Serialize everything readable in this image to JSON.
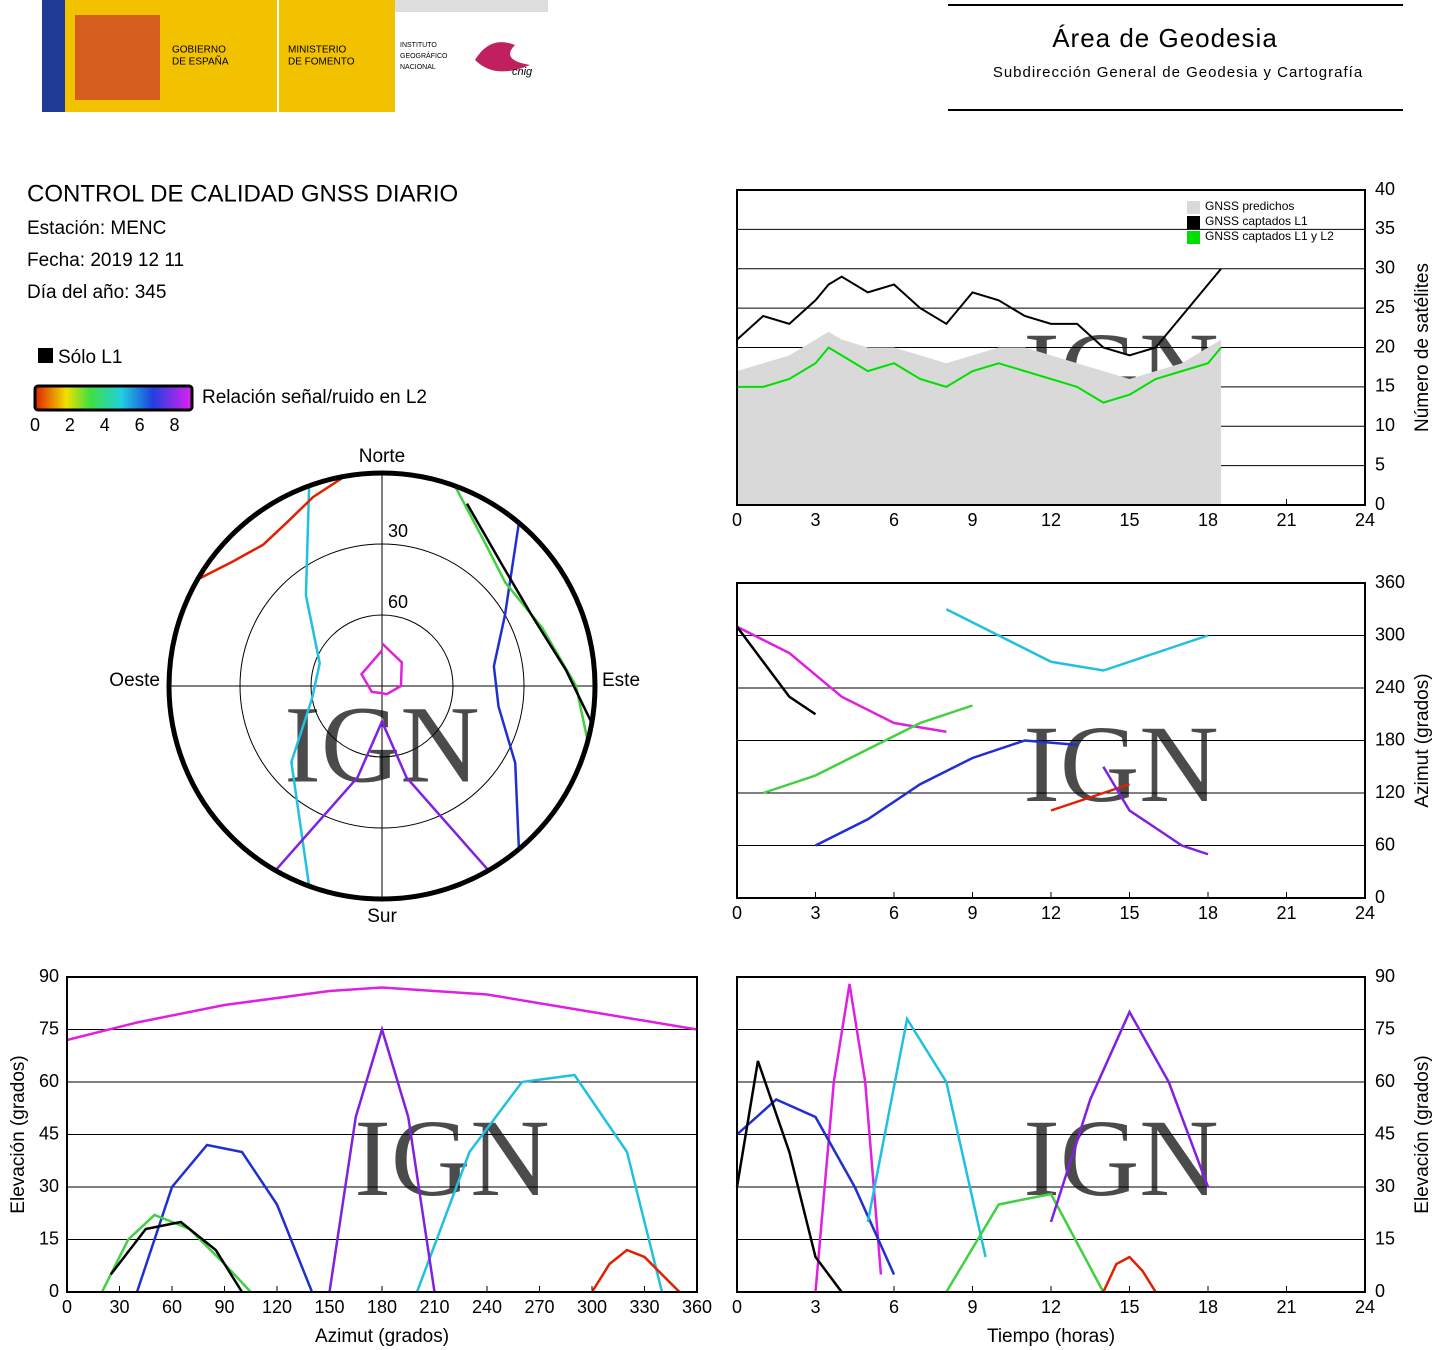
{
  "header": {
    "gobierno": [
      "GOBIERNO",
      "DE ESPAÑA"
    ],
    "ministerio": [
      "MINISTERIO",
      "DE FOMENTO"
    ],
    "instituto": [
      "INSTITUTO",
      "GEOGRÁFICO",
      "NACIONAL"
    ],
    "cnig": "cnig",
    "area": "Área de Geodesia",
    "subdireccion": "Subdirección General de Geodesia y Cartografía",
    "watermark": "IGN"
  },
  "info": {
    "title": "CONTROL DE CALIDAD GNSS DIARIO",
    "station": "Estación: MENC",
    "date": "Fecha: 2019 12 11",
    "doy": "Día del año: 345"
  },
  "legend": {
    "only_l1": "Sólo L1",
    "snr_label": "Relación señal/ruido en L2",
    "snr_lim": [
      0,
      9
    ],
    "snr_ticks": [
      0,
      2,
      4,
      6,
      8
    ]
  },
  "chart_data": [
    {
      "type": "line",
      "ylabel": "Número de satélites",
      "yaxis_position": "right",
      "grid": true,
      "legend_position": "top-right",
      "x": [
        0,
        1,
        2,
        3,
        3.5,
        4,
        5,
        6,
        7,
        8,
        9,
        10,
        11,
        12,
        13,
        14,
        15,
        16,
        17,
        18,
        18.5
      ],
      "series": [
        {
          "name": "GNSS predichos",
          "color": "#d9d9d9",
          "fill": true,
          "values": [
            17,
            18,
            19,
            21,
            22,
            21,
            20,
            20,
            19,
            18,
            19,
            20,
            20,
            19,
            18,
            17,
            16,
            17,
            18,
            20,
            21
          ]
        },
        {
          "name": "GNSS captados L1",
          "color": "#000000",
          "values": [
            21,
            24,
            23,
            26,
            28,
            29,
            27,
            28,
            25,
            23,
            27,
            26,
            24,
            23,
            23,
            20,
            19,
            20,
            24,
            28,
            30
          ]
        },
        {
          "name": "GNSS captados L1 y L2",
          "color": "#00e000",
          "values": [
            15,
            15,
            16,
            18,
            20,
            19,
            17,
            18,
            16,
            15,
            17,
            18,
            17,
            16,
            15,
            13,
            14,
            16,
            17,
            18,
            20
          ]
        }
      ],
      "xlim": [
        0,
        24
      ],
      "xticks": [
        0,
        3,
        6,
        9,
        12,
        15,
        18,
        21,
        24
      ],
      "ylim": [
        0,
        40
      ],
      "yticks": [
        0,
        5,
        10,
        15,
        20,
        25,
        30,
        35,
        40
      ]
    },
    {
      "type": "polar",
      "labels": {
        "north": "Norte",
        "south": "Sur",
        "east": "Este",
        "west": "Oeste"
      },
      "rticks": [
        30,
        60
      ],
      "series": [
        {
          "color": "#e020e0",
          "x": [
            0,
            40,
            90,
            150,
            180,
            240,
            300,
            360
          ],
          "values": [
            72,
            77,
            82,
            86,
            87,
            85,
            80,
            75
          ]
        },
        {
          "color": "#2030d0",
          "x": [
            40,
            60,
            80,
            100,
            120,
            140
          ],
          "values": [
            0,
            30,
            42,
            40,
            25,
            0
          ]
        },
        {
          "color": "#20c0e0",
          "x": [
            200,
            230,
            260,
            290,
            320,
            340
          ],
          "values": [
            0,
            40,
            60,
            62,
            40,
            0
          ]
        },
        {
          "color": "#40d040",
          "x": [
            20,
            35,
            50,
            70,
            90,
            105
          ],
          "values": [
            0,
            15,
            22,
            18,
            8,
            0
          ]
        },
        {
          "color": "#e02000",
          "x": [
            300,
            310,
            320,
            330,
            340,
            350
          ],
          "values": [
            0,
            8,
            12,
            10,
            5,
            0
          ]
        },
        {
          "color": "#000000",
          "x": [
            25,
            45,
            65,
            85,
            100
          ],
          "values": [
            5,
            18,
            20,
            12,
            0
          ]
        },
        {
          "color": "#8020e0",
          "x": [
            150,
            165,
            180,
            195,
            210
          ],
          "values": [
            0,
            50,
            75,
            50,
            0
          ]
        }
      ]
    },
    {
      "type": "track",
      "ylabel": "Azimut (grados)",
      "yaxis_position": "right",
      "grid": true,
      "series": [
        {
          "color": "#e020e0",
          "x": [
            0,
            2,
            4,
            6,
            8
          ],
          "values": [
            310,
            280,
            230,
            200,
            190
          ]
        },
        {
          "color": "#2030d0",
          "x": [
            3,
            5,
            7,
            9,
            11,
            13
          ],
          "values": [
            60,
            90,
            130,
            160,
            180,
            175
          ]
        },
        {
          "color": "#20c0e0",
          "x": [
            8,
            10,
            12,
            14,
            16,
            18
          ],
          "values": [
            330,
            300,
            270,
            260,
            280,
            300
          ]
        },
        {
          "color": "#40d040",
          "x": [
            1,
            3,
            5,
            7,
            9
          ],
          "values": [
            120,
            140,
            170,
            200,
            220
          ]
        },
        {
          "color": "#e02000",
          "x": [
            12,
            13,
            14,
            15
          ],
          "values": [
            100,
            110,
            120,
            130
          ]
        },
        {
          "color": "#000000",
          "x": [
            0,
            1,
            2,
            3
          ],
          "values": [
            310,
            270,
            230,
            210
          ]
        },
        {
          "color": "#8020e0",
          "x": [
            14,
            15,
            16,
            17,
            18
          ],
          "values": [
            150,
            100,
            80,
            60,
            50
          ]
        }
      ],
      "xlim": [
        0,
        24
      ],
      "xticks": [
        0,
        3,
        6,
        9,
        12,
        15,
        18,
        21,
        24
      ],
      "ylim": [
        0,
        360
      ],
      "yticks": [
        0,
        60,
        120,
        180,
        240,
        300,
        360
      ]
    },
    {
      "type": "track",
      "xlabel": "Azimut (grados)",
      "ylabel": "Elevación (grados)",
      "yaxis_position": "left",
      "grid": true,
      "series": [
        {
          "color": "#e020e0",
          "x": [
            0,
            40,
            90,
            150,
            180,
            240,
            300,
            360
          ],
          "values": [
            72,
            77,
            82,
            86,
            87,
            85,
            80,
            75
          ]
        },
        {
          "color": "#2030d0",
          "x": [
            40,
            60,
            80,
            100,
            120,
            140
          ],
          "values": [
            0,
            30,
            42,
            40,
            25,
            0
          ]
        },
        {
          "color": "#20c0e0",
          "x": [
            200,
            230,
            260,
            290,
            320,
            340
          ],
          "values": [
            0,
            40,
            60,
            62,
            40,
            0
          ]
        },
        {
          "color": "#40d040",
          "x": [
            20,
            35,
            50,
            70,
            90,
            105
          ],
          "values": [
            0,
            15,
            22,
            18,
            8,
            0
          ]
        },
        {
          "color": "#e02000",
          "x": [
            300,
            310,
            320,
            330,
            340,
            350
          ],
          "values": [
            0,
            8,
            12,
            10,
            5,
            0
          ]
        },
        {
          "color": "#000000",
          "x": [
            25,
            45,
            65,
            85,
            100
          ],
          "values": [
            5,
            18,
            20,
            12,
            0
          ]
        },
        {
          "color": "#8020e0",
          "x": [
            150,
            165,
            180,
            195,
            210
          ],
          "values": [
            0,
            50,
            75,
            50,
            0
          ]
        }
      ],
      "xlim": [
        0,
        360
      ],
      "xticks": [
        0,
        30,
        60,
        90,
        120,
        150,
        180,
        210,
        240,
        270,
        300,
        330,
        360
      ],
      "ylim": [
        0,
        90
      ],
      "yticks": [
        0,
        15,
        30,
        45,
        60,
        75,
        90
      ]
    },
    {
      "type": "track",
      "xlabel": "Tiempo (horas)",
      "ylabel": "Elevación (grados)",
      "yaxis_position": "right",
      "grid": true,
      "series": [
        {
          "color": "#e020e0",
          "x": [
            3,
            3.7,
            4.3,
            4.9,
            5.5
          ],
          "values": [
            0,
            60,
            88,
            60,
            5
          ]
        },
        {
          "color": "#2030d0",
          "x": [
            0,
            1.5,
            3,
            4.5,
            6
          ],
          "values": [
            45,
            55,
            50,
            30,
            5
          ]
        },
        {
          "color": "#20c0e0",
          "x": [
            5,
            6.5,
            8,
            9.5
          ],
          "values": [
            20,
            78,
            60,
            10
          ]
        },
        {
          "color": "#40d040",
          "x": [
            8,
            10,
            12,
            14
          ],
          "values": [
            0,
            25,
            28,
            0
          ]
        },
        {
          "color": "#e02000",
          "x": [
            14,
            14.5,
            15,
            15.5,
            16
          ],
          "values": [
            0,
            8,
            10,
            6,
            0
          ]
        },
        {
          "color": "#000000",
          "x": [
            0,
            0.8,
            2,
            3,
            4
          ],
          "values": [
            30,
            66,
            40,
            10,
            0
          ]
        },
        {
          "color": "#8020e0",
          "x": [
            12,
            13.5,
            15,
            16.5,
            18
          ],
          "values": [
            20,
            55,
            80,
            60,
            30
          ]
        }
      ],
      "xlim": [
        0,
        24
      ],
      "xticks": [
        0,
        3,
        6,
        9,
        12,
        15,
        18,
        21,
        24
      ],
      "ylim": [
        0,
        90
      ],
      "yticks": [
        0,
        15,
        30,
        45,
        60,
        75,
        90
      ]
    }
  ]
}
